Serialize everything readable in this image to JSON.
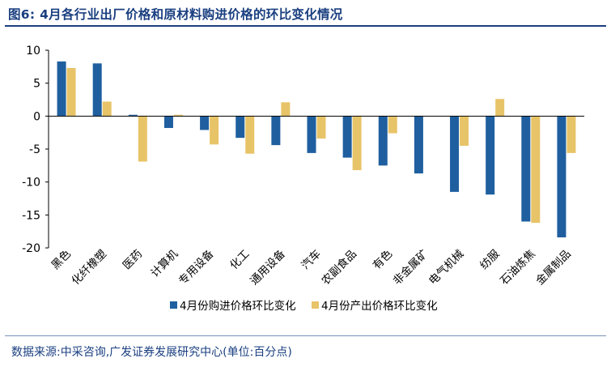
{
  "figure": {
    "title": "图6:  4月各行业出厂价格和原材料购进价格的环比变化情况",
    "source": "数据来源:中采咨询,广发证券发展研究中心(单位:百分点)"
  },
  "chart_data": {
    "type": "bar",
    "categories": [
      "黑色",
      "化纤橡塑",
      "医药",
      "计算机",
      "专用设备",
      "化工",
      "通用设备",
      "汽车",
      "农副食品",
      "有色",
      "非金属矿",
      "电气机械",
      "纺服",
      "石油炼焦",
      "金属制品"
    ],
    "series": [
      {
        "name": "4月份购进价格环比变化",
        "color": "#1f5f9f",
        "values": [
          8.3,
          8.0,
          0.2,
          -1.8,
          -2.1,
          -3.3,
          -4.4,
          -5.6,
          -6.3,
          -7.5,
          -8.7,
          -11.5,
          -11.9,
          -16.0,
          -18.4
        ]
      },
      {
        "name": "4月份产出价格环比变化",
        "color": "#e8c468",
        "values": [
          7.3,
          2.2,
          -6.9,
          0.2,
          -4.3,
          -5.7,
          2.1,
          -3.4,
          -8.2,
          -2.6,
          null,
          -4.5,
          2.6,
          -16.2,
          -5.6
        ]
      }
    ],
    "ylim": [
      -20,
      10
    ],
    "yticks": [
      -20,
      -15,
      -10,
      -5,
      0,
      5,
      10
    ],
    "grid": false,
    "legend_position": "bottom"
  }
}
